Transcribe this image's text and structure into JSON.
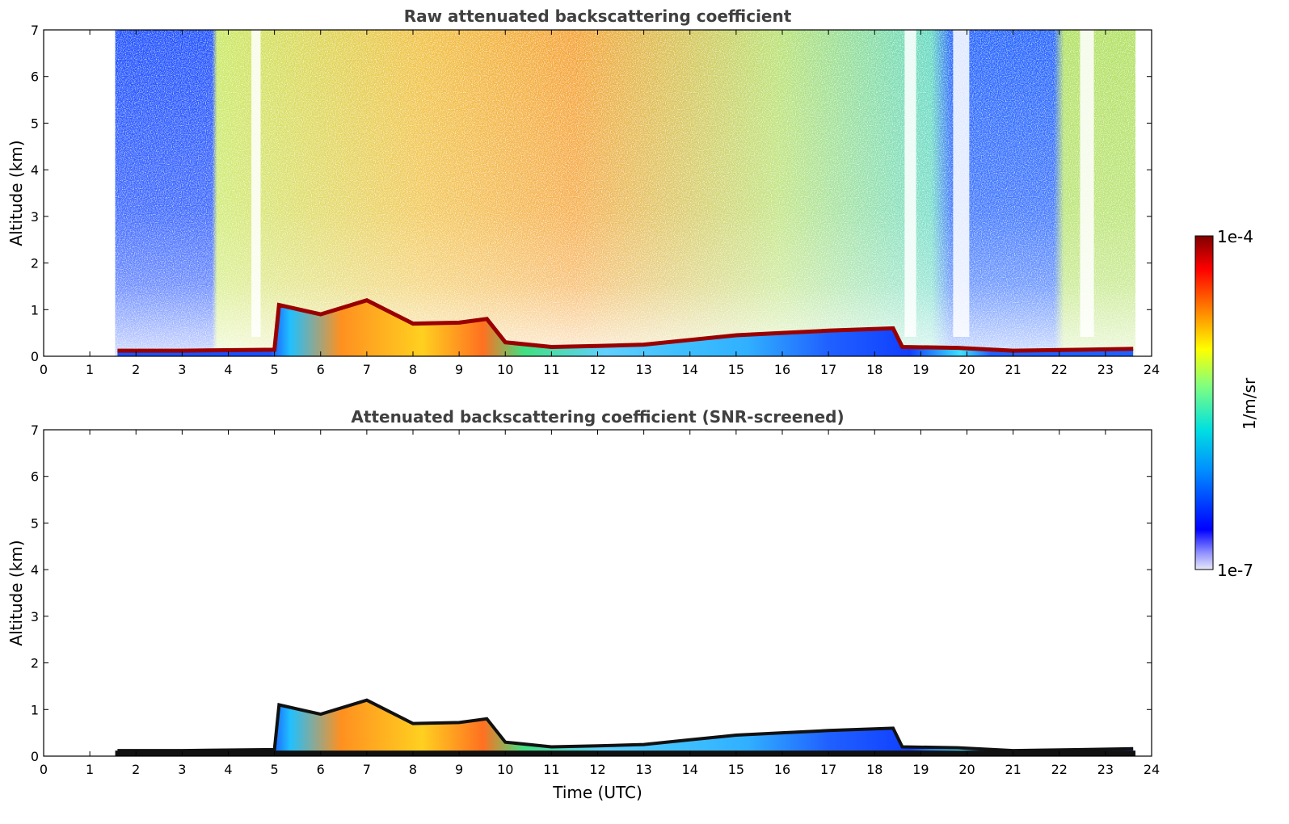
{
  "chart_data": [
    {
      "type": "heatmap",
      "title": "Raw attenuated backscattering coefficient",
      "xlabel": "",
      "ylabel": "Altitude (km)",
      "xlim": [
        0,
        24
      ],
      "ylim": [
        0,
        7
      ],
      "xticks": [
        "0",
        "1",
        "2",
        "3",
        "4",
        "5",
        "6",
        "7",
        "8",
        "9",
        "10",
        "11",
        "12",
        "13",
        "14",
        "15",
        "16",
        "17",
        "18",
        "19",
        "20",
        "21",
        "22",
        "23",
        "24"
      ],
      "yticks": [
        "0",
        "1",
        "2",
        "3",
        "4",
        "5",
        "6",
        "7"
      ],
      "data_time_range": [
        1.55,
        23.65
      ],
      "boundary_layer_top_km": [
        {
          "t": 1.6,
          "h": 0.12
        },
        {
          "t": 3.0,
          "h": 0.12
        },
        {
          "t": 5.0,
          "h": 0.14
        },
        {
          "t": 5.1,
          "h": 1.1
        },
        {
          "t": 6.0,
          "h": 0.9
        },
        {
          "t": 7.0,
          "h": 1.2
        },
        {
          "t": 8.0,
          "h": 0.7
        },
        {
          "t": 9.0,
          "h": 0.72
        },
        {
          "t": 9.6,
          "h": 0.8
        },
        {
          "t": 10.0,
          "h": 0.3
        },
        {
          "t": 11.0,
          "h": 0.2
        },
        {
          "t": 12.0,
          "h": 0.22
        },
        {
          "t": 13.0,
          "h": 0.25
        },
        {
          "t": 14.0,
          "h": 0.35
        },
        {
          "t": 15.0,
          "h": 0.45
        },
        {
          "t": 16.0,
          "h": 0.5
        },
        {
          "t": 17.0,
          "h": 0.55
        },
        {
          "t": 18.4,
          "h": 0.6
        },
        {
          "t": 18.6,
          "h": 0.2
        },
        {
          "t": 19.8,
          "h": 0.18
        },
        {
          "t": 21.0,
          "h": 0.12
        },
        {
          "t": 22.5,
          "h": 0.14
        },
        {
          "t": 23.6,
          "h": 0.16
        }
      ]
    },
    {
      "type": "heatmap",
      "title": "Attenuated backscattering coefficient (SNR-screened)",
      "xlabel": "Time (UTC)",
      "ylabel": "Altitude (km)",
      "xlim": [
        0,
        24
      ],
      "ylim": [
        0,
        7
      ],
      "xticks": [
        "0",
        "1",
        "2",
        "3",
        "4",
        "5",
        "6",
        "7",
        "8",
        "9",
        "10",
        "11",
        "12",
        "13",
        "14",
        "15",
        "16",
        "17",
        "18",
        "19",
        "20",
        "21",
        "22",
        "23",
        "24"
      ],
      "yticks": [
        "0",
        "1",
        "2",
        "3",
        "4",
        "5",
        "6",
        "7"
      ],
      "data_time_range": [
        1.55,
        23.65
      ]
    }
  ],
  "colorbar": {
    "label": "1/m/sr",
    "max_label": "1e-4",
    "min_label": "1e-7",
    "colors": [
      "#e8e8f8",
      "#0000ff",
      "#0090ff",
      "#00e0e0",
      "#80ff80",
      "#ffff00",
      "#ff8000",
      "#ff0000",
      "#800000"
    ]
  }
}
